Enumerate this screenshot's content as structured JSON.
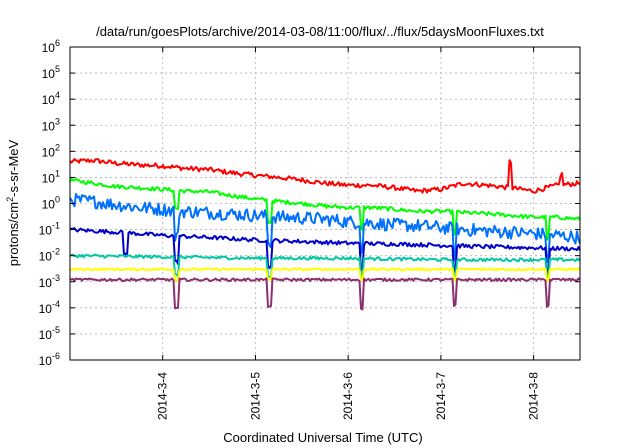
{
  "chart_data": {
    "type": "line",
    "title": "/data/run/goesPlots/archive/2014-03-08/11:00/flux/../flux/5daysMoonFluxes.txt",
    "xlabel": "Coordinated Universal Time (UTC)",
    "ylabel": "protons/cm2-s-sr-MeV",
    "ylabel_parts": {
      "pre": "protons/cm",
      "sup": "2",
      "post": "-s-sr-MeV"
    },
    "yscale": "log",
    "ylim_exponents": [
      -6,
      6
    ],
    "y_tick_base": "10",
    "xlim": [
      "2014-03-03T00:00",
      "2014-03-08T12:00"
    ],
    "x_ticks": [
      "2014-3-4",
      "2014-3-5",
      "2014-3-6",
      "2014-3-7",
      "2014-3-8"
    ],
    "grid": true,
    "series": [
      {
        "color": "#ff0000",
        "points": [
          [
            0,
            40
          ],
          [
            0.25,
            45
          ],
          [
            0.5,
            35
          ],
          [
            0.75,
            30
          ],
          [
            1,
            28
          ],
          [
            1.25,
            22
          ],
          [
            1.5,
            20
          ],
          [
            1.75,
            15
          ],
          [
            2,
            12
          ],
          [
            2.25,
            10
          ],
          [
            2.5,
            8
          ],
          [
            2.75,
            6
          ],
          [
            3,
            5
          ],
          [
            3.25,
            5
          ],
          [
            3.5,
            4
          ],
          [
            3.75,
            3
          ],
          [
            4,
            3.5
          ],
          [
            4.25,
            6
          ],
          [
            4.5,
            5
          ],
          [
            4.75,
            4
          ],
          [
            5,
            3
          ],
          [
            5.25,
            5
          ],
          [
            5.5,
            6
          ],
          [
            5.75,
            5
          ],
          [
            6,
            4
          ],
          [
            6.25,
            4
          ],
          [
            6.5,
            3
          ],
          [
            6.75,
            3
          ]
        ],
        "noise": 0.18,
        "spikes": [
          [
            4.75,
            10
          ],
          [
            5.3,
            2.5
          ],
          [
            6.65,
            0.5
          ]
        ]
      },
      {
        "color": "#00ff00",
        "points": [
          [
            0,
            8
          ],
          [
            0.25,
            6
          ],
          [
            0.5,
            4.5
          ],
          [
            0.75,
            4
          ],
          [
            1,
            3.5
          ],
          [
            1.25,
            3
          ],
          [
            1.5,
            2.8
          ],
          [
            1.75,
            2
          ],
          [
            2,
            1.5
          ],
          [
            2.25,
            1.2
          ],
          [
            2.5,
            1
          ],
          [
            2.75,
            0.8
          ],
          [
            3,
            0.7
          ],
          [
            3.25,
            0.7
          ],
          [
            3.5,
            0.6
          ],
          [
            3.75,
            0.5
          ],
          [
            4,
            0.5
          ],
          [
            4.25,
            0.45
          ],
          [
            4.5,
            0.4
          ],
          [
            4.75,
            0.35
          ],
          [
            5,
            0.3
          ],
          [
            5.25,
            0.3
          ],
          [
            5.5,
            0.25
          ],
          [
            5.75,
            0.2
          ],
          [
            6,
            0.18
          ],
          [
            6.25,
            0.15
          ],
          [
            6.5,
            0.12
          ],
          [
            6.75,
            0.1
          ]
        ],
        "noise": 0.15,
        "spikes": [
          [
            1.15,
            0.2
          ],
          [
            2.15,
            0.15
          ],
          [
            3.15,
            0.15
          ],
          [
            4.15,
            0.15
          ],
          [
            5.15,
            0.15
          ],
          [
            6.15,
            0.15
          ]
        ]
      },
      {
        "color": "#0070ff",
        "points": [
          [
            0,
            1.4
          ],
          [
            0.25,
            1.2
          ],
          [
            0.5,
            0.9
          ],
          [
            0.75,
            0.7
          ],
          [
            1,
            0.6
          ],
          [
            1.25,
            0.5
          ],
          [
            1.5,
            0.45
          ],
          [
            1.75,
            0.4
          ],
          [
            2,
            0.35
          ],
          [
            2.25,
            0.3
          ],
          [
            2.5,
            0.28
          ],
          [
            2.75,
            0.25
          ],
          [
            3,
            0.2
          ],
          [
            3.25,
            0.18
          ],
          [
            3.5,
            0.15
          ],
          [
            3.75,
            0.14
          ],
          [
            4,
            0.12
          ],
          [
            4.25,
            0.1
          ],
          [
            4.5,
            0.09
          ],
          [
            4.75,
            0.08
          ],
          [
            5,
            0.07
          ],
          [
            5.25,
            0.06
          ],
          [
            5.5,
            0.05
          ],
          [
            5.75,
            0.05
          ],
          [
            6,
            0.05
          ],
          [
            6.25,
            0.04
          ],
          [
            6.5,
            0.04
          ],
          [
            6.75,
            0.04
          ]
        ],
        "noise": 0.5,
        "spikes": [
          [
            1.15,
            0.1
          ],
          [
            2.15,
            0.1
          ],
          [
            3.15,
            0.1
          ],
          [
            4.15,
            0.1
          ],
          [
            5.15,
            0.1
          ],
          [
            6.15,
            0.1
          ]
        ]
      },
      {
        "color": "#0000cc",
        "points": [
          [
            0,
            0.1
          ],
          [
            0.5,
            0.08
          ],
          [
            1,
            0.06
          ],
          [
            1.5,
            0.05
          ],
          [
            2,
            0.04
          ],
          [
            2.5,
            0.035
          ],
          [
            3,
            0.03
          ],
          [
            3.5,
            0.028
          ],
          [
            4,
            0.025
          ],
          [
            4.5,
            0.022
          ],
          [
            5,
            0.02
          ],
          [
            5.5,
            0.018
          ],
          [
            6,
            0.016
          ],
          [
            6.5,
            0.015
          ],
          [
            6.75,
            0.015
          ]
        ],
        "noise": 0.15,
        "spikes": [
          [
            0.6,
            0.15
          ],
          [
            1.15,
            0.1
          ],
          [
            2.15,
            0.1
          ],
          [
            3.15,
            0.1
          ],
          [
            4.15,
            0.1
          ],
          [
            5.15,
            0.1
          ],
          [
            6.15,
            0.1
          ]
        ]
      },
      {
        "color": "#00c8a0",
        "points": [
          [
            0,
            0.01
          ],
          [
            1,
            0.009
          ],
          [
            2,
            0.008
          ],
          [
            3,
            0.008
          ],
          [
            4,
            0.007
          ],
          [
            5,
            0.007
          ],
          [
            6,
            0.007
          ],
          [
            6.75,
            0.007
          ]
        ],
        "noise": 0.12,
        "spikes": [
          [
            1.15,
            0.2
          ],
          [
            2.15,
            0.2
          ],
          [
            3.15,
            0.2
          ],
          [
            4.15,
            0.2
          ],
          [
            5.15,
            0.2
          ],
          [
            6.15,
            0.2
          ]
        ]
      },
      {
        "color": "#ffff00",
        "points": [
          [
            0,
            0.003
          ],
          [
            1,
            0.003
          ],
          [
            2,
            0.003
          ],
          [
            3,
            0.003
          ],
          [
            4,
            0.003
          ],
          [
            5,
            0.003
          ],
          [
            6,
            0.003
          ],
          [
            6.75,
            0.003
          ]
        ],
        "noise": 0.08,
        "spikes": [
          [
            1.15,
            0.4
          ],
          [
            2.15,
            0.4
          ],
          [
            3.15,
            0.4
          ],
          [
            4.15,
            0.4
          ],
          [
            5.15,
            0.4
          ],
          [
            6.15,
            0.4
          ]
        ]
      },
      {
        "color": "#8b2f6e",
        "points": [
          [
            0,
            0.0012
          ],
          [
            1,
            0.0012
          ],
          [
            2,
            0.0012
          ],
          [
            3,
            0.0012
          ],
          [
            4,
            0.0012
          ],
          [
            5,
            0.0012
          ],
          [
            6,
            0.0012
          ],
          [
            6.75,
            0.0012
          ]
        ],
        "noise": 0.1,
        "spikes": [
          [
            1.15,
            0.08
          ],
          [
            2.15,
            0.1
          ],
          [
            3.15,
            0.08
          ],
          [
            4.15,
            0.1
          ],
          [
            5.15,
            0.1
          ],
          [
            6.15,
            0.1
          ]
        ]
      }
    ]
  }
}
